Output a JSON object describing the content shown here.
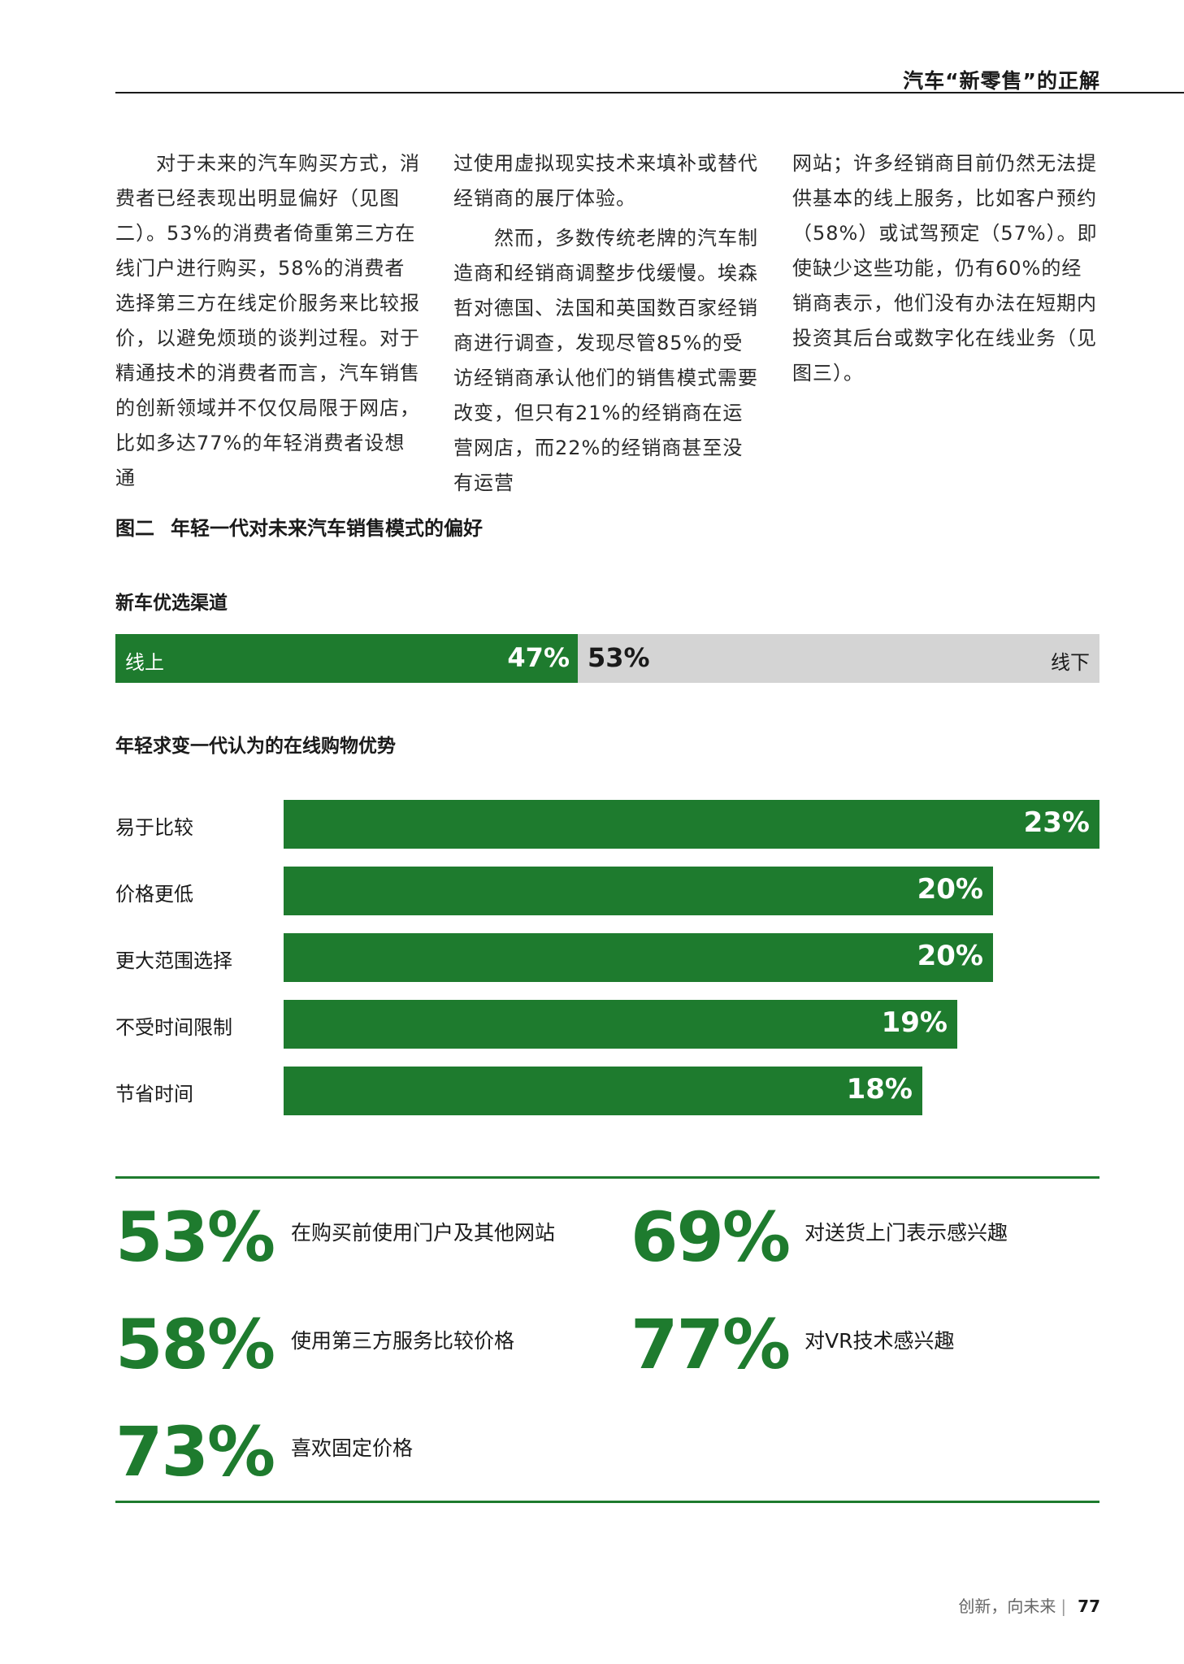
{
  "header": {
    "title": "汽车“新零售”的正解"
  },
  "body_text": {
    "col1": [
      "对于未来的汽车购买方式，消费者已经表现出明显偏好（见图二）。53%的消费者倚重第三方在线门户进行购买，58%的消费者选择第三方在线定价服务来比较报价，以避免烦琐的谈判过程。对于精通技术的消费者而言，汽车销售的创新领域并不仅仅局限于网店，比如多达77%的年轻消费者设想通"
    ],
    "col2": [
      "过使用虚拟现实技术来填补或替代经销商的展厅体验。",
      "然而，多数传统老牌的汽车制造商和经销商调整步伐缓慢。埃森哲对德国、法国和英国数百家经销商进行调查，发现尽管85%的受访经销商承认他们的销售模式需要改变，但只有21%的经销商在运营网店，而22%的经销商甚至没有运营"
    ],
    "col3": [
      "网站；许多经销商目前仍然无法提供基本的线上服务，比如客户预约（58%）或试驾预定（57%）。即使缺少这些功能，仍有60%的经销商表示，他们没有办法在短期内投资其后台或数字化在线业务（见图三）。"
    ]
  },
  "figure": {
    "number": "图二",
    "title": "年轻一代对未来汽车销售模式的偏好",
    "split_heading": "新车优选渠道",
    "bars_heading": "年轻求变一代认为的在线购物优势"
  },
  "chart_data": [
    {
      "type": "bar",
      "orientation": "horizontal-stacked",
      "title": "新车优选渠道",
      "categories": [
        "线上",
        "线下"
      ],
      "values": [
        47,
        53
      ],
      "value_labels": [
        "47%",
        "53%"
      ],
      "unit": "%",
      "colors": [
        "#1e7b2e",
        "#d4d4d4"
      ]
    },
    {
      "type": "bar",
      "orientation": "horizontal",
      "title": "年轻求变一代认为的在线购物优势",
      "categories": [
        "易于比较",
        "价格更低",
        "更大范围选择",
        "不受时间限制",
        "节省时间"
      ],
      "values": [
        23,
        20,
        20,
        19,
        18
      ],
      "value_labels": [
        "23%",
        "20%",
        "20%",
        "19%",
        "18%"
      ],
      "unit": "%",
      "xlim": [
        0,
        23
      ],
      "grid": false,
      "color": "#1e7b2e"
    }
  ],
  "stats": [
    {
      "value": "53%",
      "label": "在购买前使用门户及其他网站"
    },
    {
      "value": "69%",
      "label": "对送货上门表示感兴趣"
    },
    {
      "value": "58%",
      "label": "使用第三方服务比较价格"
    },
    {
      "value": "77%",
      "label": "对VR技术感兴趣"
    },
    {
      "value": "73%",
      "label": "喜欢固定价格"
    }
  ],
  "footer": {
    "text": "创新，向未来",
    "separator": "|",
    "page": "77"
  },
  "colors": {
    "accent": "#1e7b2e",
    "neutral_bar": "#d4d4d4"
  }
}
